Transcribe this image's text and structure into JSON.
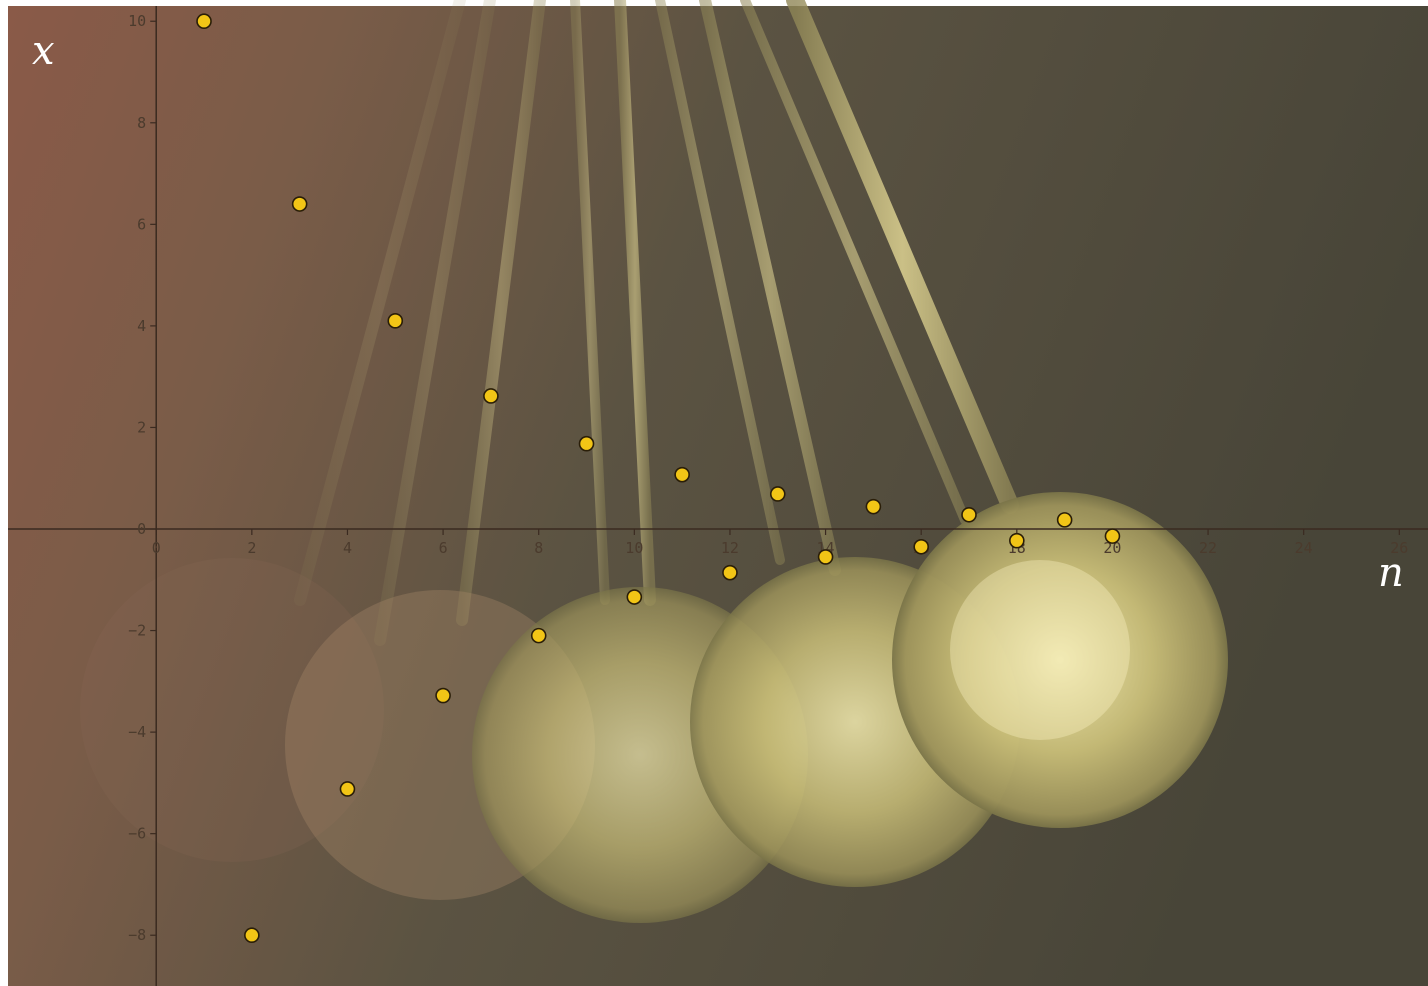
{
  "chart_data": {
    "type": "scatter",
    "title": "",
    "xlabel": "n",
    "ylabel": "x",
    "xlim": [
      -3.1,
      26.6
    ],
    "ylim": [
      -9,
      10.3
    ],
    "grid": false,
    "legend": "none",
    "x_ticks": [
      0,
      2,
      4,
      6,
      8,
      10,
      12,
      14,
      16,
      18,
      20,
      22,
      24,
      26
    ],
    "y_ticks": [
      10,
      8,
      6,
      4,
      2,
      0,
      -2,
      -4,
      -6,
      -8
    ],
    "x_tick_labels": [
      "0",
      "2",
      "4",
      "6",
      "8",
      "10",
      "12",
      "14",
      "16",
      "18",
      "20",
      "22",
      "24",
      "26"
    ],
    "y_tick_labels": [
      "10",
      "8",
      "6",
      "4",
      "2",
      "0",
      "−2",
      "−4",
      "−6",
      "−8"
    ],
    "series": [
      {
        "x": [
          1,
          2,
          3,
          4,
          5,
          6,
          7,
          8,
          9,
          10,
          11,
          12,
          13,
          14,
          15,
          16,
          17,
          18,
          19,
          20
        ],
        "y": [
          10,
          -8,
          6.4,
          -5.12,
          4.1,
          -3.28,
          2.62,
          -2.1,
          1.68,
          -1.34,
          1.07,
          -0.86,
          0.69,
          -0.55,
          0.44,
          -0.35,
          0.28,
          -0.23,
          0.18,
          -0.14
        ]
      }
    ],
    "colors": {
      "point_fill": "#f2c516",
      "point_stroke": "#2a1e08",
      "axis": "#3a2a20",
      "label": "#ffffff"
    }
  }
}
